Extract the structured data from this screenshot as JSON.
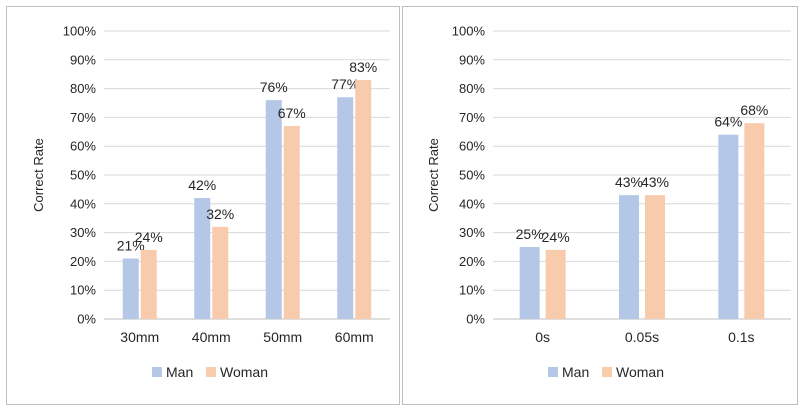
{
  "chart_data": [
    {
      "type": "bar",
      "categories": [
        "30mm",
        "40mm",
        "50mm",
        "60mm"
      ],
      "series": [
        {
          "name": "Man",
          "values": [
            21,
            42,
            76,
            77
          ],
          "labels": [
            "21%",
            "42%",
            "76%",
            "77%"
          ]
        },
        {
          "name": "Woman",
          "values": [
            24,
            32,
            67,
            83
          ],
          "labels": [
            "24%",
            "32%",
            "67%",
            "83%"
          ]
        }
      ],
      "ylabel": "Correct Rate",
      "ylim": [
        0,
        100
      ],
      "yticks": [
        "0%",
        "10%",
        "20%",
        "30%",
        "40%",
        "50%",
        "60%",
        "70%",
        "80%",
        "90%",
        "100%"
      ],
      "legend_position": "bottom",
      "grid": true
    },
    {
      "type": "bar",
      "categories": [
        "0s",
        "0.05s",
        "0.1s"
      ],
      "series": [
        {
          "name": "Man",
          "values": [
            25,
            43,
            64
          ],
          "labels": [
            "25%",
            "43%",
            "64%"
          ]
        },
        {
          "name": "Woman",
          "values": [
            24,
            43,
            68
          ],
          "labels": [
            "24%",
            "43%",
            "68%"
          ]
        }
      ],
      "ylabel": "Correct Rate",
      "ylim": [
        0,
        100
      ],
      "yticks": [
        "0%",
        "10%",
        "20%",
        "30%",
        "40%",
        "50%",
        "60%",
        "70%",
        "80%",
        "90%",
        "100%"
      ],
      "legend_position": "bottom",
      "grid": true
    }
  ],
  "colors": {
    "man": "#b4c7e7",
    "woman": "#f8cbad",
    "grid": "#d9d9d9",
    "axis": "#bfbfbf"
  }
}
